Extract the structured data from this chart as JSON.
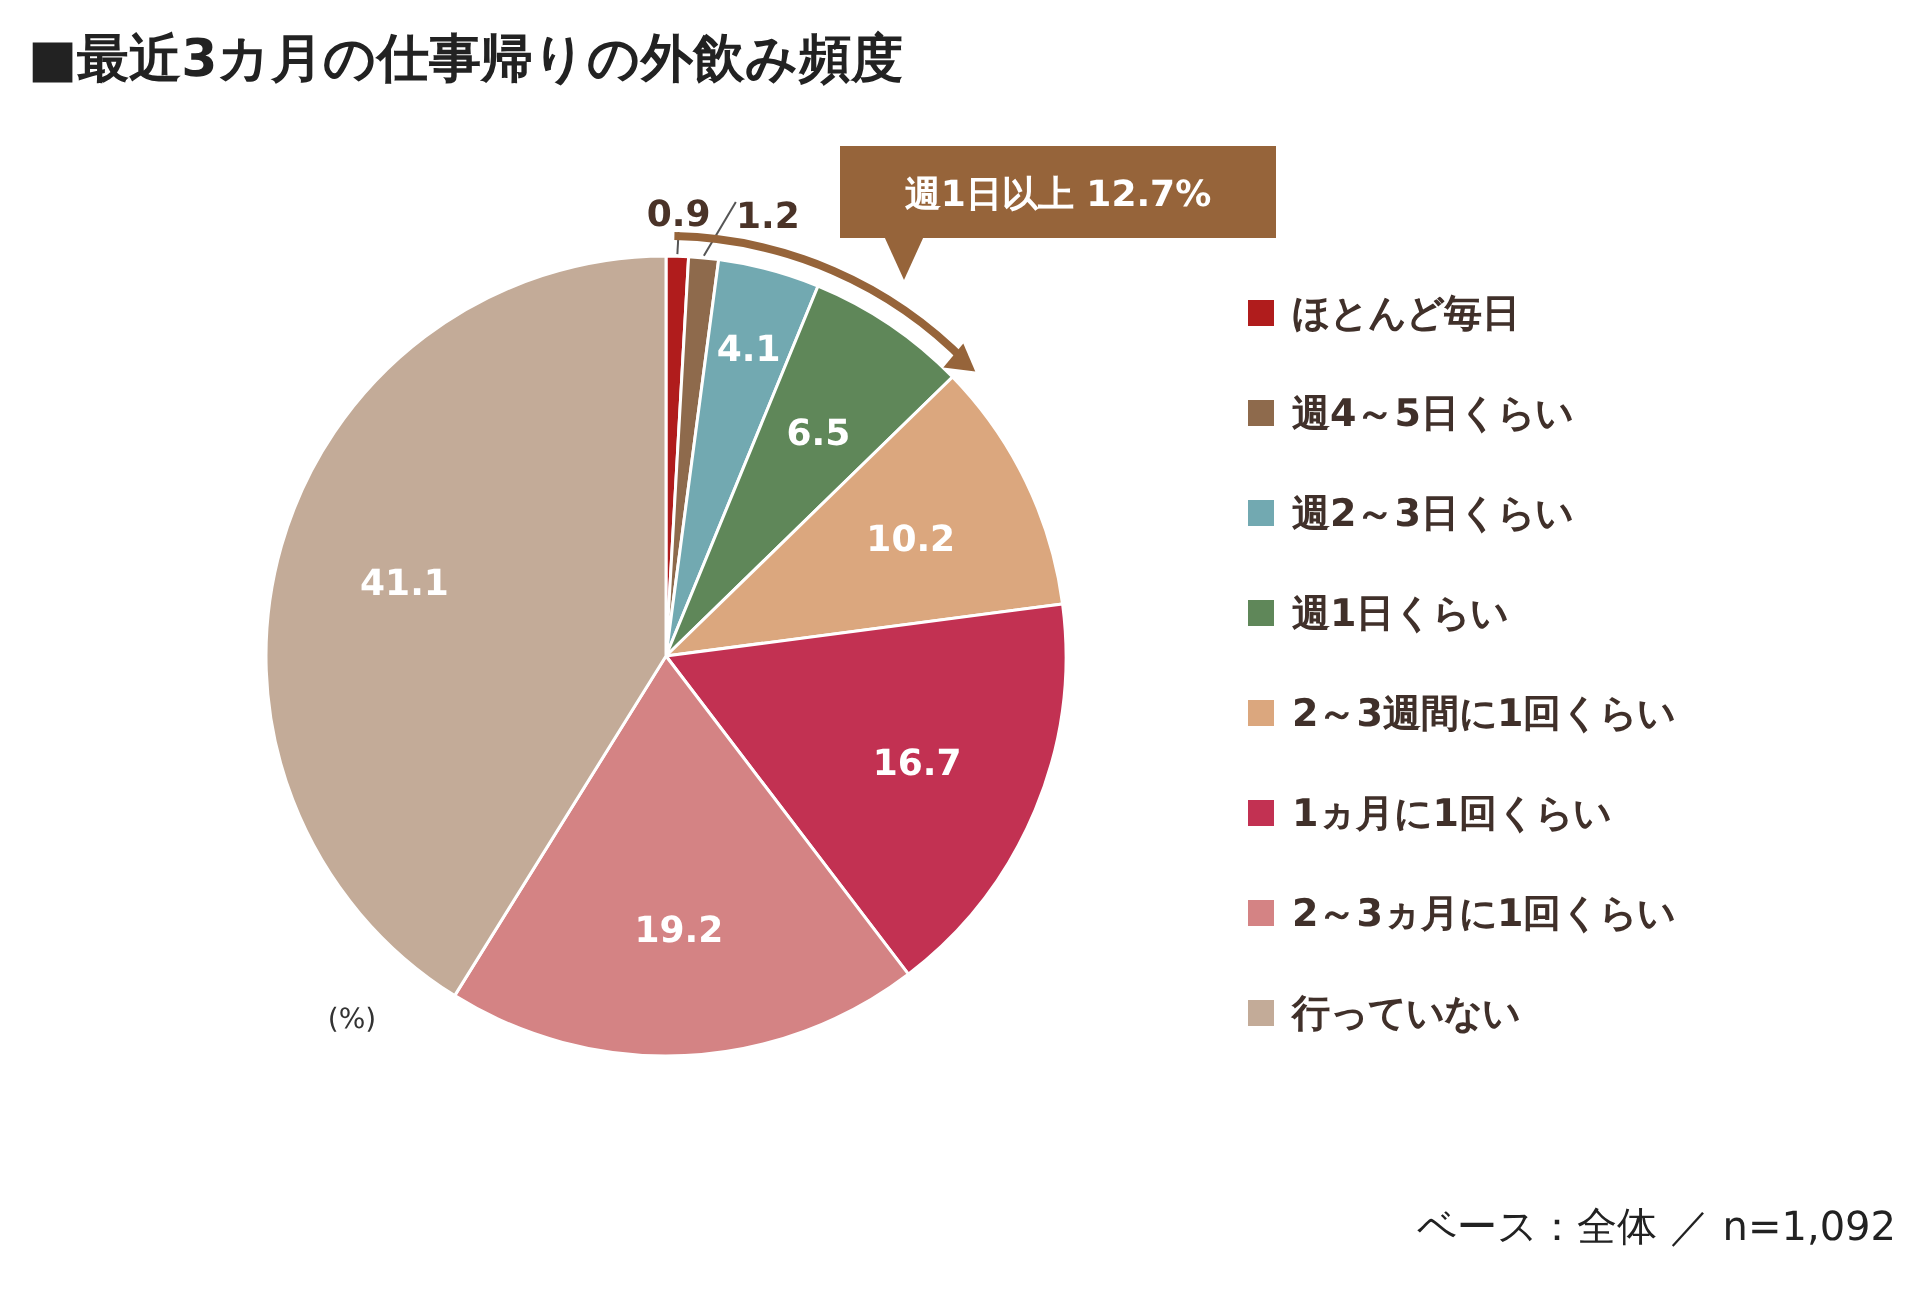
{
  "chart_data": {
    "type": "pie",
    "title": "■最近3カ月の仕事帰りの外飲み頻度",
    "categories": [
      "ほとんど毎日",
      "週4～5日くらい",
      "週2～3日くらい",
      "週1日くらい",
      "2～3週間に1回くらい",
      "1ヵ月に1回くらい",
      "2～3ヵ月に1回くらい",
      "行っていない"
    ],
    "values": [
      0.9,
      1.2,
      4.1,
      6.5,
      10.2,
      16.7,
      19.2,
      41.1
    ],
    "colors": [
      "#b01c1c",
      "#8e6a4c",
      "#72a9b1",
      "#5f8759",
      "#dba77e",
      "#c23152",
      "#d48384",
      "#c3ab98"
    ],
    "data_labels": true,
    "legend": "right",
    "annotations": [
      "週1日以上 12.7%",
      "(%)",
      "ベース：全体 ／ n=1,092"
    ]
  }
}
